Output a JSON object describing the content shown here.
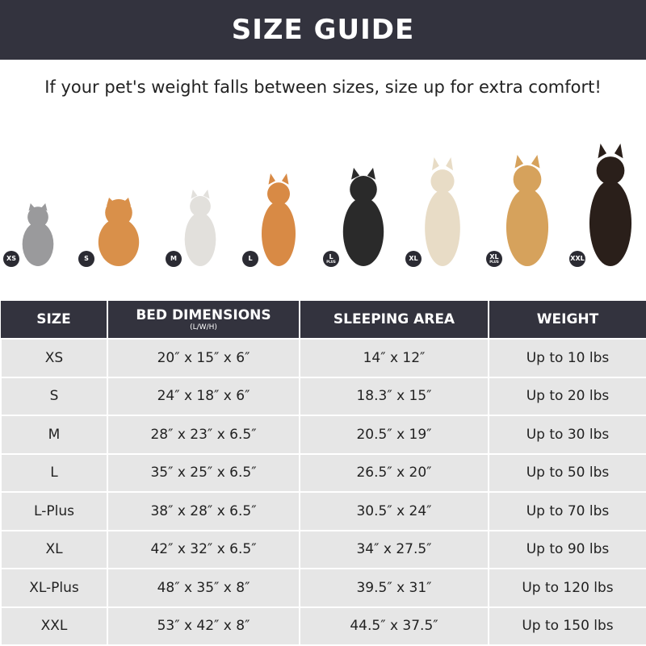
{
  "title": "SIZE GUIDE",
  "subtitle": "If your pet's weight falls between sizes, size up for extra comfort!",
  "pets": [
    {
      "badge": "XS",
      "badge_sub": "",
      "animal": "cat",
      "color": "#9a9a9c"
    },
    {
      "badge": "S",
      "badge_sub": "",
      "animal": "pomeranian",
      "color": "#d9904a"
    },
    {
      "badge": "M",
      "badge_sub": "",
      "animal": "french-bulldog",
      "color": "#e2e0dc"
    },
    {
      "badge": "L",
      "badge_sub": "",
      "animal": "shiba-inu",
      "color": "#d88a45"
    },
    {
      "badge": "L",
      "badge_sub": "PLUS",
      "animal": "border-collie",
      "color": "#2a2a2a"
    },
    {
      "badge": "XL",
      "badge_sub": "",
      "animal": "labrador",
      "color": "#e8dcc6"
    },
    {
      "badge": "XL",
      "badge_sub": "PLUS",
      "animal": "golden-retriever",
      "color": "#d6a25c"
    },
    {
      "badge": "XXL",
      "badge_sub": "",
      "animal": "doberman",
      "color": "#2a1f1a"
    }
  ],
  "table": {
    "headers": {
      "size": "SIZE",
      "bed": "BED DIMENSIONS",
      "bed_sub": "(L/W/H)",
      "sleeping": "SLEEPING AREA",
      "weight": "WEIGHT"
    },
    "rows": [
      {
        "size": "XS",
        "bed": "20″ x 15″ x 6″",
        "sleeping": "14″ x 12″",
        "weight": "Up to 10 lbs"
      },
      {
        "size": "S",
        "bed": "24″ x 18″ x 6″",
        "sleeping": "18.3″ x 15″",
        "weight": "Up to 20 lbs"
      },
      {
        "size": "M",
        "bed": "28″ x 23″ x 6.5″",
        "sleeping": "20.5″ x 19″",
        "weight": "Up to 30 lbs"
      },
      {
        "size": "L",
        "bed": "35″ x 25″ x 6.5″",
        "sleeping": "26.5″ x 20″",
        "weight": "Up to 50 lbs"
      },
      {
        "size": "L-Plus",
        "bed": "38″ x 28″ x 6.5″",
        "sleeping": "30.5″ x 24″",
        "weight": "Up to 70 lbs"
      },
      {
        "size": "XL",
        "bed": "42″ x 32″ x 6.5″",
        "sleeping": "34″ x 27.5″",
        "weight": "Up to 90 lbs"
      },
      {
        "size": "XL-Plus",
        "bed": "48″ x 35″ x 8″",
        "sleeping": "39.5″ x 31″",
        "weight": "Up to 120 lbs"
      },
      {
        "size": "XXL",
        "bed": "53″ x 42″ x 8″",
        "sleeping": "44.5″ x 37.5″",
        "weight": "Up to 150 lbs"
      }
    ]
  }
}
